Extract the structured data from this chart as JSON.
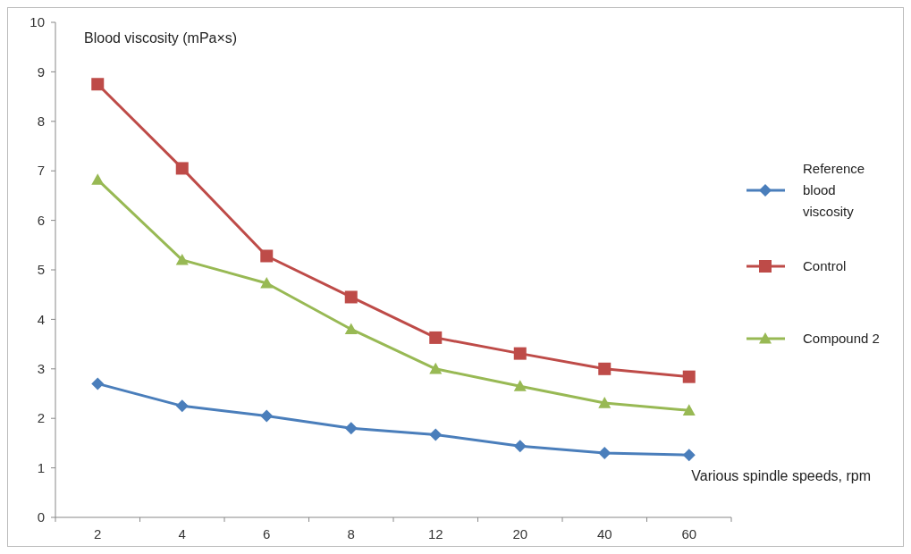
{
  "chart_data": {
    "type": "line",
    "ylabel": "Blood viscosity (mPa×s)",
    "xlabel": "Various spindle speeds, rpm",
    "categories": [
      "2",
      "4",
      "6",
      "8",
      "12",
      "20",
      "40",
      "60"
    ],
    "series": [
      {
        "name": "Reference blood viscosity",
        "color": "#4a7ebb",
        "marker": "diamond",
        "values": [
          2.7,
          2.25,
          2.05,
          1.8,
          1.67,
          1.44,
          1.3,
          1.26
        ]
      },
      {
        "name": "Control",
        "color": "#be4b48",
        "marker": "square",
        "values": [
          8.75,
          7.05,
          5.28,
          4.45,
          3.63,
          3.31,
          3.0,
          2.84
        ]
      },
      {
        "name": "Compound 2",
        "color": "#98b954",
        "marker": "triangle",
        "values": [
          6.82,
          5.2,
          4.73,
          3.8,
          3.0,
          2.65,
          2.31,
          2.16
        ]
      }
    ],
    "ylim": [
      0,
      10
    ],
    "yticks": [
      0,
      1,
      2,
      3,
      4,
      5,
      6,
      7,
      8,
      9,
      10
    ],
    "legend": "right",
    "grid": false,
    "line_style": "solid"
  }
}
